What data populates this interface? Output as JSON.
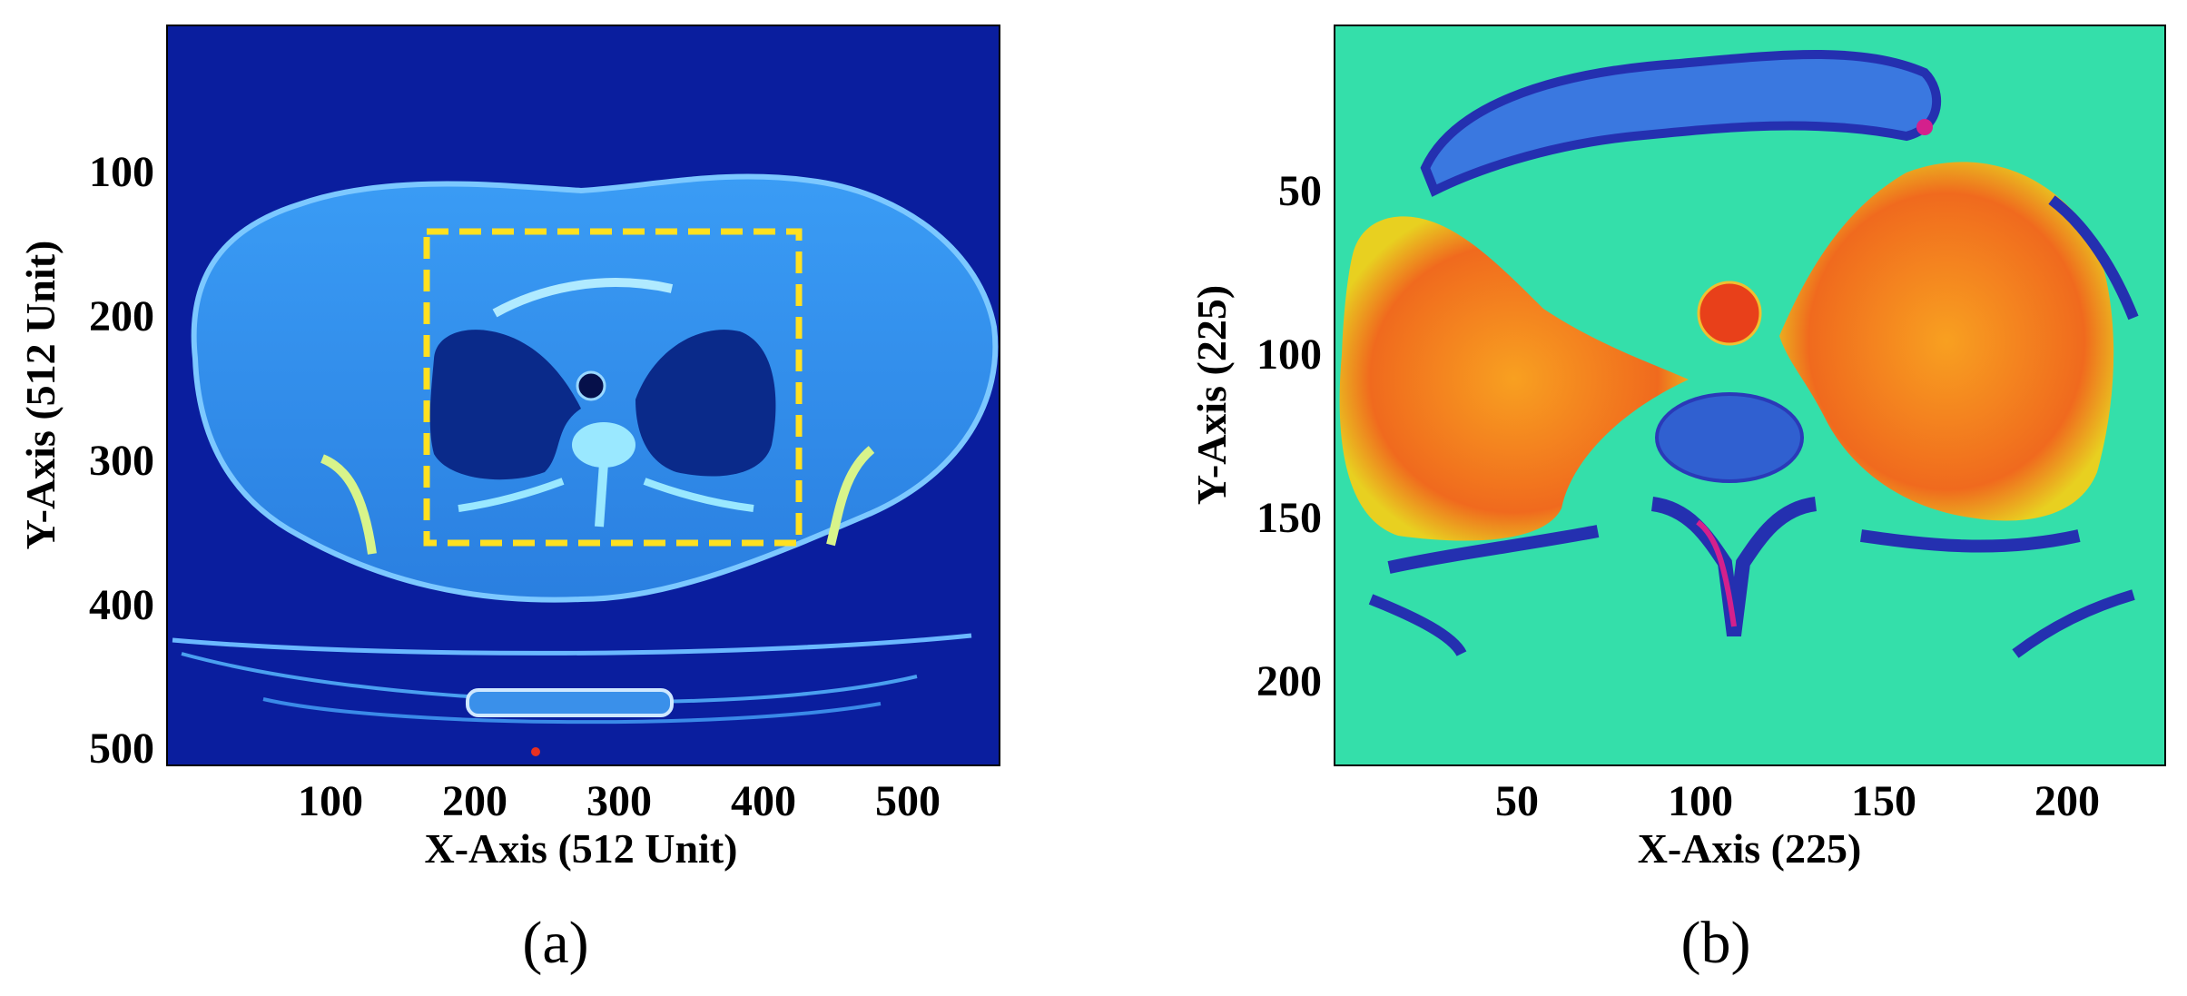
{
  "panel_a": {
    "caption": "(a)",
    "xlabel": "X-Axis (512 Unit)",
    "ylabel": "Y-Axis (512 Unit)",
    "xticks": [
      "100",
      "200",
      "300",
      "400",
      "500"
    ],
    "yticks": [
      "100",
      "200",
      "300",
      "400",
      "500"
    ],
    "colors": {
      "background": "#0a1e9e",
      "body": "#2f8ff0",
      "lung": "#0a2a8a",
      "bone": "#9ae8ff",
      "roi_box": "#ffe020"
    }
  },
  "panel_b": {
    "caption": "(b)",
    "xlabel": "X-Axis (225)",
    "ylabel": "Y-Axis (225)",
    "xticks": [
      "50",
      "100",
      "150",
      "200"
    ],
    "yticks": [
      "50",
      "100",
      "150",
      "200"
    ],
    "colors": {
      "background": "#2fe39a",
      "lung": "#f06a1e",
      "bone": "#3040c8",
      "artery": "#e8401a",
      "highlight": "#d4208c"
    }
  }
}
